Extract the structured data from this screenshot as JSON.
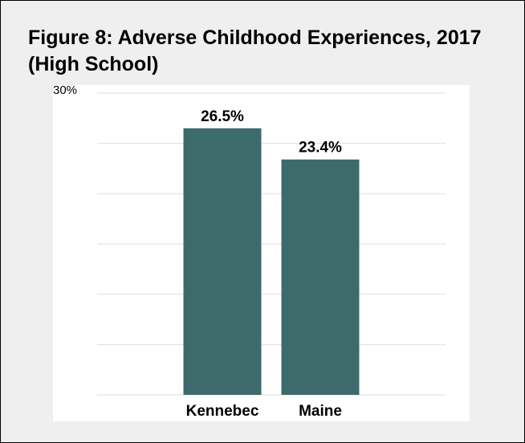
{
  "figure": {
    "title": "Figure 8: Adverse Childhood Experiences, 2017 (High School)"
  },
  "colors": {
    "bar": "#3d6b6b",
    "grid": "#dedede",
    "card_background": "#efefef",
    "plot_background": "#ffffff"
  },
  "chart_data": {
    "type": "bar",
    "title": "",
    "categories": [
      "Kennebec",
      "Maine"
    ],
    "values": [
      26.5,
      23.4
    ],
    "value_labels": [
      "26.5%",
      "23.4%"
    ],
    "ylim": [
      0,
      30
    ],
    "y_tick_labels": [
      {
        "value": 30,
        "label": "30%"
      }
    ],
    "grid_lines": [
      0,
      5,
      10,
      15,
      20,
      25,
      30
    ],
    "grid": true,
    "xlabel": "",
    "ylabel": ""
  }
}
